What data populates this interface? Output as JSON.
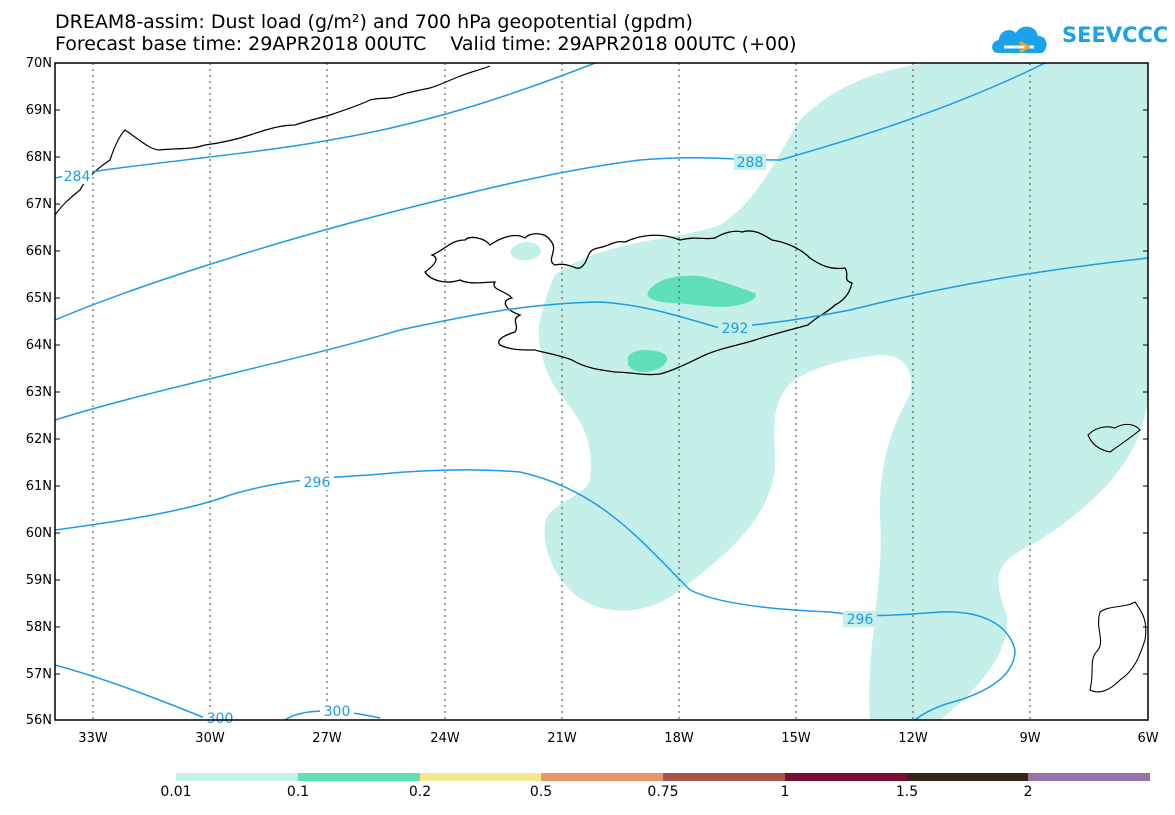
{
  "title": {
    "line1": "DREAM8-assim: Dust load (g/m²) and 700 hPa geopotential (gpdm)",
    "line2": "Forecast base time: 29APR2018 00UTC    Valid time: 29APR2018 00UTC (+00)"
  },
  "logo": {
    "text": "SEEVCCC",
    "icon": "cloud-icon"
  },
  "map": {
    "lat_labels": [
      "70N",
      "69N",
      "68N",
      "67N",
      "66N",
      "65N",
      "64N",
      "63N",
      "62N",
      "61N",
      "60N",
      "59N",
      "58N",
      "57N",
      "56N"
    ],
    "lon_labels": [
      "33W",
      "30W",
      "27W",
      "24W",
      "21W",
      "18W",
      "15W",
      "12W",
      "9W",
      "6W"
    ],
    "contour_labels": [
      "284",
      "288",
      "292",
      "296",
      "296",
      "300",
      "300"
    ],
    "colors": {
      "contour": "#1e9be6",
      "coast": "#000000",
      "dust_low": "#c5f0ea",
      "dust_mid": "#5fe0b8"
    }
  },
  "colorbar": {
    "labels": [
      "0.01",
      "0.1",
      "0.2",
      "0.5",
      "0.75",
      "1",
      "1.5",
      "2"
    ],
    "colors": [
      "#c5f0ea",
      "#5fe0b8",
      "#f3e88a",
      "#e8956a",
      "#a5554a",
      "#7a1030",
      "#3b2418",
      "#9a72a8"
    ]
  }
}
